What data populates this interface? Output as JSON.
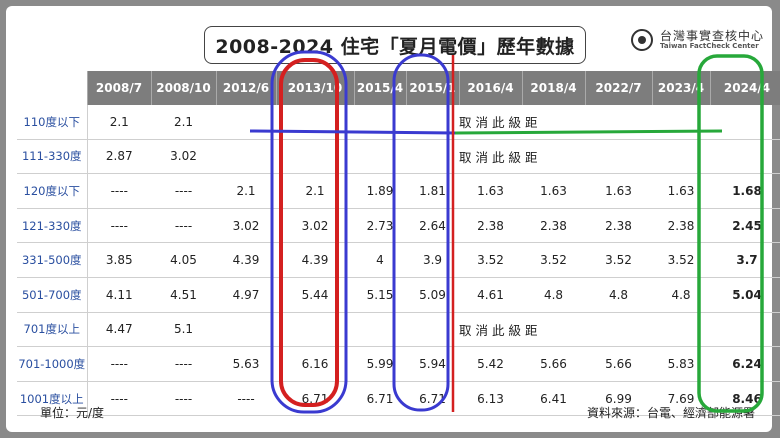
{
  "title": "2008-2024 住宅「夏月電價」歷年數據",
  "logo": {
    "zh": "台灣事實查核中心",
    "en": "Taiwan FactCheck Center"
  },
  "columns": [
    "",
    "2008/7",
    "2008/10",
    "2012/6",
    "2013/10",
    "2015/4",
    "2015/1",
    "2016/4",
    "2018/4",
    "2022/7",
    "2023/4",
    "2024/4"
  ],
  "cancel_text": "取消此級距",
  "rows": [
    {
      "label": "110度以下",
      "values": [
        "2.1",
        "2.1"
      ],
      "cancel": true
    },
    {
      "label": "111-330度",
      "values": [
        "2.87",
        "3.02"
      ],
      "cancel": true
    },
    {
      "label": "120度以下",
      "values": [
        "----",
        "----",
        "2.1",
        "2.1",
        "1.89",
        "1.81",
        "1.63",
        "1.63",
        "1.63",
        "1.63",
        "1.68"
      ]
    },
    {
      "label": "121-330度",
      "values": [
        "----",
        "----",
        "3.02",
        "3.02",
        "2.73",
        "2.64",
        "2.38",
        "2.38",
        "2.38",
        "2.38",
        "2.45"
      ]
    },
    {
      "label": "331-500度",
      "values": [
        "3.85",
        "4.05",
        "4.39",
        "4.39",
        "4",
        "3.9",
        "3.52",
        "3.52",
        "3.52",
        "3.52",
        "3.7"
      ]
    },
    {
      "label": "501-700度",
      "values": [
        "4.11",
        "4.51",
        "4.97",
        "5.44",
        "5.15",
        "5.09",
        "4.61",
        "4.8",
        "4.8",
        "4.8",
        "5.04"
      ]
    },
    {
      "label": "701度以上",
      "values": [
        "4.47",
        "5.1"
      ],
      "cancel": true
    },
    {
      "label": "701-1000度",
      "values": [
        "----",
        "----",
        "5.63",
        "6.16",
        "5.99",
        "5.94",
        "5.42",
        "5.66",
        "5.66",
        "5.83",
        "6.24"
      ]
    },
    {
      "label": "1001度以上",
      "values": [
        "----",
        "----",
        "----",
        "6.71",
        "6.71",
        "6.71",
        "6.13",
        "6.41",
        "6.99",
        "7.69",
        "8.46"
      ]
    }
  ],
  "footer": {
    "unit": "單位：元/度",
    "source": "資料來源：台電、經濟部能源署"
  },
  "colors": {
    "header_bg": "#7d7d7d",
    "label_blue": "#2a4fa0",
    "red": "#d42020",
    "blue": "#3a3ad0",
    "green": "#27a83a"
  }
}
